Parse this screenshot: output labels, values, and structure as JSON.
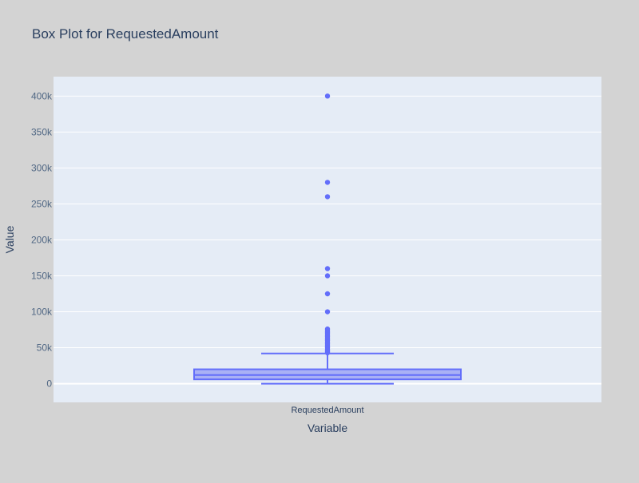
{
  "chart_data": {
    "type": "box",
    "title": "Box Plot for RequestedAmount",
    "xlabel": "Variable",
    "ylabel": "Value",
    "categories": [
      "RequestedAmount"
    ],
    "ylim": [
      -26000,
      427000
    ],
    "yticks": [
      0,
      50000,
      100000,
      150000,
      200000,
      250000,
      300000,
      350000,
      400000
    ],
    "ytick_labels": [
      "0",
      "50k",
      "100k",
      "150k",
      "200k",
      "250k",
      "300k",
      "350k",
      "400k"
    ],
    "grid": true,
    "box": {
      "min": 0,
      "q1": 6000,
      "median": 12000,
      "q3": 20000,
      "upper_fence": 42000
    },
    "outliers": [
      400000,
      280000,
      260000,
      160000,
      150000,
      125000,
      100000,
      76000,
      74000,
      72000,
      70000,
      68000,
      66000,
      64000,
      62000,
      60000,
      58000,
      56000,
      54000,
      52000,
      50000,
      48000,
      46000,
      44000,
      43000
    ],
    "colors": {
      "page_bg": "#d3d3d3",
      "plot_bg": "#e5ecf6",
      "grid": "#ffffff",
      "box_line": "#636efa",
      "box_fill": "#9aa2f5",
      "text": "#2a3f5f",
      "tick_text": "#506784"
    }
  }
}
